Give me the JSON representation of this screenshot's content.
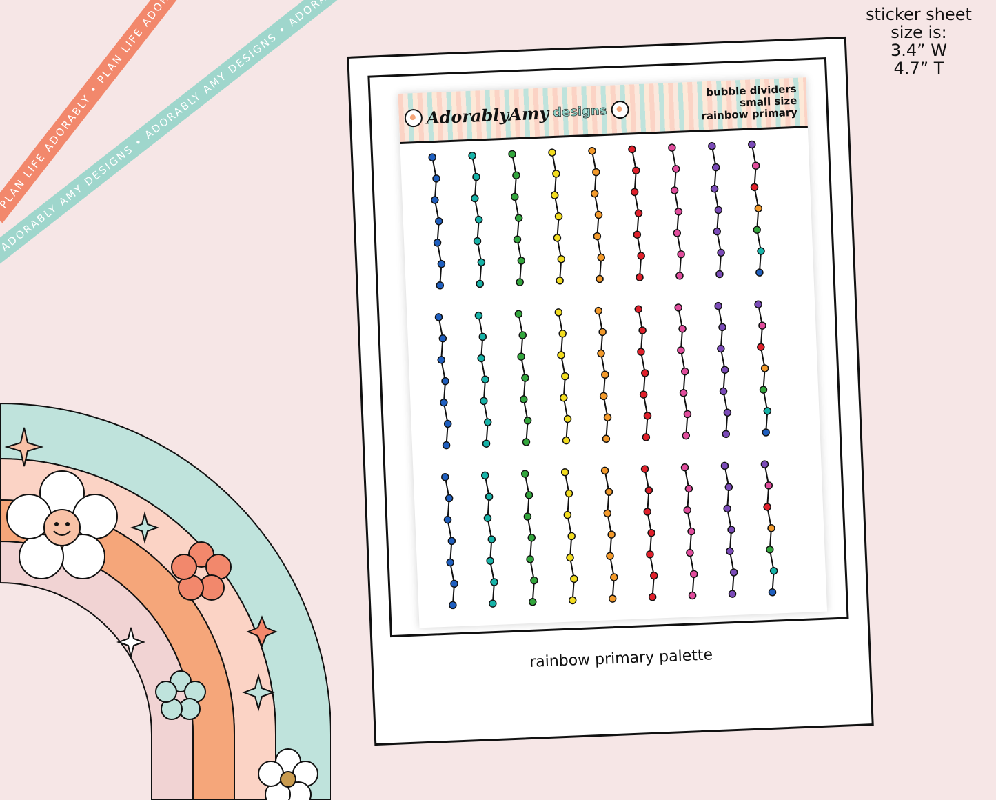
{
  "size_note": {
    "line1": "sticker sheet",
    "line2": "size is:",
    "line3": "3.4” W",
    "line4": "4.7” T"
  },
  "ribbons": {
    "orange_text": "PLAN LIFE ADORABLY • PLAN LIFE ADORABLY • PLAN LIFE ADORABLY",
    "teal_text": "ADORABLY AMY DESIGNS • ADORABLY AMY DESIGNS • ADORABLY AMY DESIGNS"
  },
  "sheet": {
    "brand_name": "AdorablyAmy",
    "brand_sub": "designs",
    "title_line1": "bubble dividers",
    "title_line2": "small size",
    "title_line3": "rainbow primary"
  },
  "caption": "rainbow primary palette",
  "palette": {
    "blue": "#1f5fbf",
    "teal": "#17b3a8",
    "green": "#33a63d",
    "yellow": "#f2dc1f",
    "orange": "#f39a2b",
    "red": "#e0202b",
    "pink": "#e04c9c",
    "purple": "#7b4bb8",
    "outline": "#111111",
    "rainbow_outer": "#bfe3dc",
    "rainbow_mid": "#fbd3c5",
    "rainbow_orange": "#f5a67a",
    "rainbow_inner": "#f1d3d3"
  },
  "divider_columns": [
    [
      "blue",
      "blue",
      "blue",
      "blue",
      "blue",
      "blue",
      "blue"
    ],
    [
      "teal",
      "teal",
      "teal",
      "teal",
      "teal",
      "teal",
      "teal"
    ],
    [
      "green",
      "green",
      "green",
      "green",
      "green",
      "green",
      "green"
    ],
    [
      "yellow",
      "yellow",
      "yellow",
      "yellow",
      "yellow",
      "yellow",
      "yellow"
    ],
    [
      "orange",
      "orange",
      "orange",
      "orange",
      "orange",
      "orange",
      "orange"
    ],
    [
      "red",
      "red",
      "red",
      "red",
      "red",
      "red",
      "red"
    ],
    [
      "pink",
      "pink",
      "pink",
      "pink",
      "pink",
      "pink",
      "pink"
    ],
    [
      "purple",
      "purple",
      "purple",
      "purple",
      "purple",
      "purple",
      "purple"
    ],
    [
      "purple",
      "pink",
      "red",
      "orange",
      "green",
      "teal",
      "blue"
    ]
  ],
  "divider_rows": 3
}
